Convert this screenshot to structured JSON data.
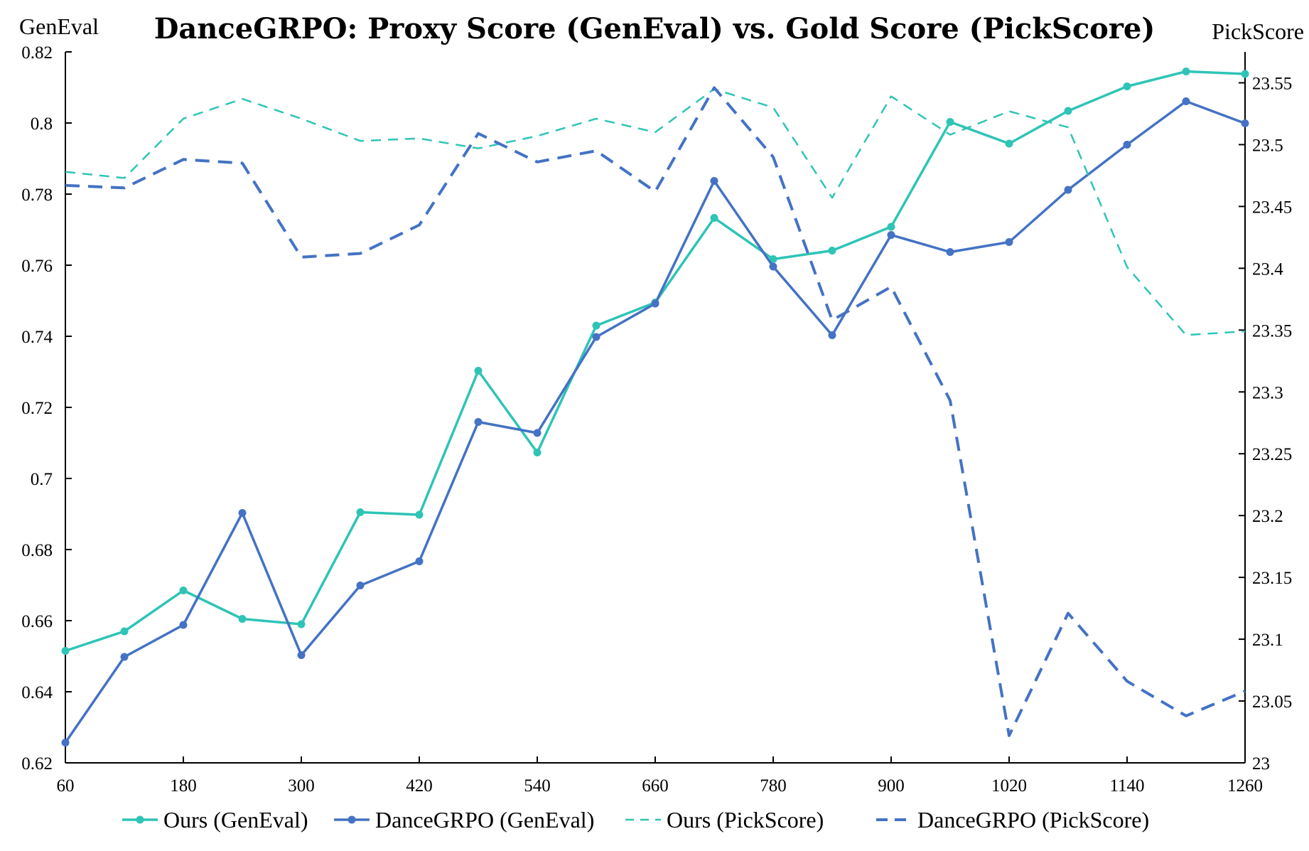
{
  "chart_data": {
    "type": "line",
    "title": "DanceGRPO: Proxy Score (GenEval) vs. Gold Score (PickScore)",
    "ylabel_left": "GenEval",
    "ylabel_right": "PickScore",
    "xlim": [
      60,
      1260
    ],
    "ylim_left": [
      0.62,
      0.82
    ],
    "ylim_right": [
      23.0,
      23.575
    ],
    "x_ticks": [
      60,
      180,
      300,
      420,
      540,
      660,
      780,
      900,
      1020,
      1140,
      1260
    ],
    "x_tick_labels": [
      "60",
      "180",
      "300",
      "420",
      "540",
      "660",
      "780",
      "900",
      "1020",
      "1140",
      "1260"
    ],
    "y_left_ticks": [
      0.62,
      0.64,
      0.66,
      0.68,
      0.7,
      0.72,
      0.74,
      0.76,
      0.78,
      0.8,
      0.82
    ],
    "y_left_tick_labels": [
      "0.62",
      "0.64",
      "0.66",
      "0.68",
      "0.7",
      "0.72",
      "0.74",
      "0.76",
      "0.78",
      "0.8",
      "0.82"
    ],
    "y_right_ticks": [
      23.0,
      23.05,
      23.1,
      23.15,
      23.2,
      23.25,
      23.3,
      23.35,
      23.4,
      23.45,
      23.5,
      23.55
    ],
    "y_right_tick_labels": [
      "23",
      "23.05",
      "23.1",
      "23.15",
      "23.2",
      "23.25",
      "23.3",
      "23.35",
      "23.4",
      "23.45",
      "23.5",
      "23.55"
    ],
    "x": [
      60,
      120,
      180,
      240,
      300,
      360,
      420,
      480,
      540,
      600,
      660,
      720,
      780,
      840,
      900,
      960,
      1020,
      1080,
      1140,
      1200,
      1260
    ],
    "series": [
      {
        "name": "Ours (GenEval)",
        "axis": "left",
        "style": "solid",
        "markers": true,
        "color": "#2ec4b6",
        "values": [
          0.6515,
          0.657,
          0.6685,
          0.6605,
          0.659,
          0.6905,
          0.6898,
          0.7303,
          0.7073,
          0.743,
          0.7495,
          0.7733,
          0.7617,
          0.7641,
          0.7708,
          0.8003,
          0.7942,
          0.8034,
          0.8103,
          0.8145,
          0.8138
        ]
      },
      {
        "name": "DanceGRPO (GenEval)",
        "axis": "left",
        "style": "solid",
        "markers": true,
        "color": "#4472c4",
        "values": [
          0.6257,
          0.6498,
          0.6588,
          0.6903,
          0.6503,
          0.6699,
          0.6767,
          0.7159,
          0.7128,
          0.7398,
          0.7492,
          0.7837,
          0.7596,
          0.7403,
          0.7685,
          0.7637,
          0.7665,
          0.7812,
          0.7939,
          0.8061,
          0.7999
        ]
      },
      {
        "name": "Ours (PickScore)",
        "axis": "right",
        "style": "dashed-thin",
        "markers": false,
        "color": "#2ec4b6",
        "values": [
          23.478,
          23.473,
          23.521,
          23.537,
          23.521,
          23.503,
          23.505,
          23.497,
          23.507,
          23.521,
          23.51,
          23.545,
          23.53,
          23.457,
          23.539,
          23.508,
          23.527,
          23.514,
          23.401,
          23.346,
          23.349
        ]
      },
      {
        "name": "DanceGRPO (PickScore)",
        "axis": "right",
        "style": "dashed-thick",
        "markers": false,
        "color": "#4472c4",
        "values": [
          23.467,
          23.465,
          23.488,
          23.485,
          23.409,
          23.412,
          23.435,
          23.509,
          23.486,
          23.495,
          23.462,
          23.546,
          23.49,
          23.358,
          23.385,
          23.293,
          23.022,
          23.121,
          23.066,
          23.038,
          23.058
        ]
      }
    ],
    "legend": [
      "Ours (GenEval)",
      "DanceGRPO (GenEval)",
      "Ours (PickScore)",
      "DanceGRPO (PickScore)"
    ],
    "legend_position": "bottom",
    "grid": false
  }
}
